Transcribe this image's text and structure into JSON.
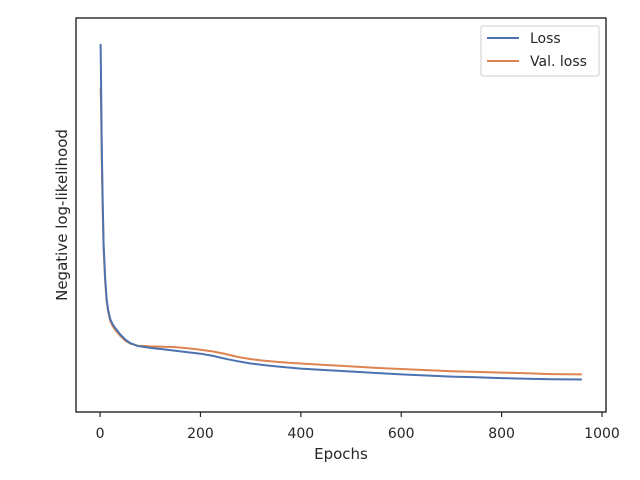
{
  "chart_data": {
    "type": "line",
    "title": "",
    "xlabel": "Epochs",
    "ylabel": "Negative log-likelihood",
    "xlim": [
      -48,
      1008
    ],
    "ylim": [
      0.0,
      1.0
    ],
    "xticks": [
      0,
      200,
      400,
      600,
      800,
      1000
    ],
    "yticks_visible": false,
    "grid": false,
    "legend": "top-right",
    "series": [
      {
        "name": "Loss",
        "color": "#4c72b0",
        "x": [
          1,
          2,
          3,
          5,
          7,
          10,
          13,
          16,
          20,
          25,
          30,
          40,
          50,
          60,
          75,
          90,
          100,
          125,
          150,
          175,
          200,
          225,
          250,
          275,
          300,
          325,
          350,
          375,
          400,
          450,
          500,
          550,
          600,
          650,
          700,
          750,
          800,
          850,
          900,
          960
        ],
        "y": [
          0.97,
          0.86,
          0.72,
          0.55,
          0.42,
          0.33,
          0.27,
          0.24,
          0.215,
          0.2,
          0.19,
          0.172,
          0.158,
          0.148,
          0.14,
          0.137,
          0.135,
          0.131,
          0.127,
          0.123,
          0.119,
          0.113,
          0.105,
          0.098,
          0.092,
          0.088,
          0.084,
          0.081,
          0.078,
          0.074,
          0.07,
          0.066,
          0.062,
          0.059,
          0.056,
          0.054,
          0.052,
          0.05,
          0.049,
          0.048
        ]
      },
      {
        "name": "Val. loss",
        "color": "#dd8452",
        "x": [
          1,
          2,
          3,
          5,
          7,
          10,
          13,
          16,
          20,
          25,
          30,
          40,
          50,
          60,
          75,
          90,
          100,
          125,
          150,
          175,
          200,
          225,
          250,
          275,
          300,
          325,
          350,
          375,
          400,
          450,
          500,
          550,
          600,
          650,
          700,
          750,
          800,
          850,
          900,
          960
        ],
        "y": [
          0.85,
          0.8,
          0.68,
          0.53,
          0.41,
          0.32,
          0.265,
          0.235,
          0.21,
          0.195,
          0.185,
          0.168,
          0.155,
          0.147,
          0.141,
          0.14,
          0.139,
          0.138,
          0.137,
          0.134,
          0.13,
          0.125,
          0.118,
          0.11,
          0.104,
          0.1,
          0.097,
          0.094,
          0.092,
          0.088,
          0.084,
          0.08,
          0.077,
          0.074,
          0.071,
          0.069,
          0.067,
          0.065,
          0.063,
          0.062
        ]
      }
    ]
  }
}
